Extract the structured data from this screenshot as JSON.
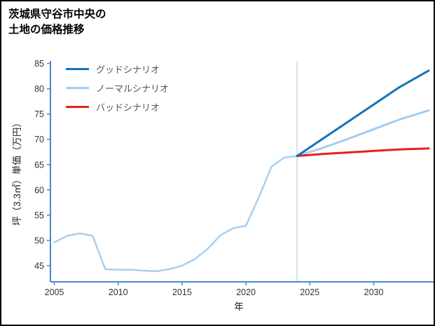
{
  "title": {
    "line1": "茨城県守谷市中央の",
    "line2": "土地の価格推移"
  },
  "legend": [
    {
      "label": "グッドシナリオ",
      "color": "#1572b8"
    },
    {
      "label": "ノーマルシナリオ",
      "color": "#a5cdf0"
    },
    {
      "label": "バッドシナリオ",
      "color": "#e4201c"
    }
  ],
  "chart_data": {
    "type": "line",
    "title": "茨城県守谷市中央の土地の価格推移",
    "xlabel": "年",
    "ylabel": "坪（3.3㎡）単価（万円）",
    "x_ticks": [
      2005,
      2010,
      2015,
      2020,
      2025,
      2030
    ],
    "y_ticks": [
      45,
      50,
      55,
      60,
      65,
      70,
      75,
      80,
      85
    ],
    "xlim": [
      2004.7,
      2034.3
    ],
    "ylim": [
      41.8,
      85.5
    ],
    "grid": false,
    "legend_position": "upper-left",
    "axis_color": "#4d88c7",
    "forecast_divider_x": 2024,
    "divider_color": "#bdd2ea",
    "series": [
      {
        "name": "history",
        "color": "#a5cdf0",
        "width": 2.4,
        "x": [
          2005,
          2006,
          2007,
          2008,
          2009,
          2010,
          2011,
          2012,
          2013,
          2014,
          2015,
          2016,
          2017,
          2018,
          2019,
          2020,
          2021,
          2022,
          2023,
          2024
        ],
        "values": [
          49.6,
          50.9,
          51.4,
          50.9,
          44.3,
          44.2,
          44.2,
          44.0,
          43.9,
          44.3,
          45.0,
          46.3,
          48.3,
          51.0,
          52.4,
          52.9,
          58.5,
          64.6,
          66.4,
          66.7
        ]
      },
      {
        "name": "ノーマルシナリオ",
        "color": "#a5cdf0",
        "width": 3,
        "x": [
          2024,
          2026,
          2028,
          2030,
          2032,
          2034.3
        ],
        "values": [
          66.7,
          68.3,
          70.1,
          72.0,
          73.9,
          75.7
        ]
      },
      {
        "name": "バッドシナリオ",
        "color": "#e4201c",
        "width": 3,
        "x": [
          2024,
          2026,
          2028,
          2030,
          2032,
          2034.3
        ],
        "values": [
          66.7,
          67.1,
          67.4,
          67.7,
          68.0,
          68.2
        ]
      },
      {
        "name": "グッドシナリオ",
        "color": "#1572b8",
        "width": 3,
        "x": [
          2024,
          2026,
          2028,
          2030,
          2032,
          2034.3
        ],
        "values": [
          66.7,
          70.1,
          73.5,
          76.9,
          80.3,
          83.6
        ]
      }
    ]
  }
}
